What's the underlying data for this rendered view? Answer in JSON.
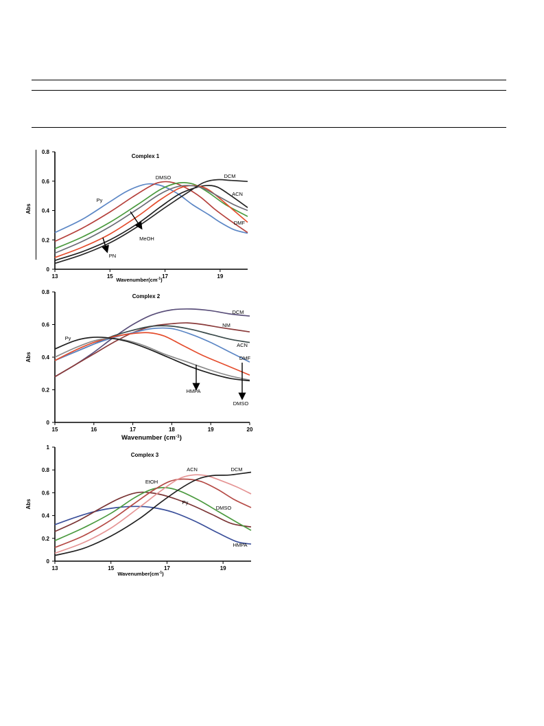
{
  "chart_data": [
    {
      "type": "line",
      "title": "Complex 1",
      "xlabel": "Wavenumber(cm-1)",
      "ylabel": "Abs",
      "xlim": [
        13,
        20
      ],
      "ylim": [
        0,
        0.8
      ],
      "xticks": [
        13,
        15,
        17,
        19
      ],
      "yticks": [
        0,
        0.2,
        0.4,
        0.6,
        0.8
      ],
      "series": [
        {
          "name": "Py",
          "color": "#5b86c5",
          "points": [
            [
              13,
              0.25
            ],
            [
              14,
              0.34
            ],
            [
              15,
              0.46
            ],
            [
              15.6,
              0.53
            ],
            [
              16.2,
              0.575
            ],
            [
              16.6,
              0.58
            ],
            [
              17,
              0.56
            ],
            [
              17.5,
              0.51
            ],
            [
              18,
              0.44
            ],
            [
              18.6,
              0.37
            ],
            [
              19,
              0.32
            ],
            [
              19.5,
              0.27
            ],
            [
              20,
              0.245
            ]
          ]
        },
        {
          "name": "DMSO",
          "color": "#b5403b",
          "points": [
            [
              13,
              0.19
            ],
            [
              14,
              0.28
            ],
            [
              15,
              0.39
            ],
            [
              15.8,
              0.49
            ],
            [
              16.5,
              0.57
            ],
            [
              16.9,
              0.595
            ],
            [
              17.3,
              0.59
            ],
            [
              17.8,
              0.55
            ],
            [
              18.3,
              0.49
            ],
            [
              18.8,
              0.41
            ],
            [
              19.3,
              0.34
            ],
            [
              20,
              0.25
            ]
          ]
        },
        {
          "name": "MeOH",
          "color": "#4b9a3f",
          "points": [
            [
              13,
              0.14
            ],
            [
              14,
              0.22
            ],
            [
              15,
              0.32
            ],
            [
              16,
              0.44
            ],
            [
              16.8,
              0.54
            ],
            [
              17.3,
              0.58
            ],
            [
              17.7,
              0.59
            ],
            [
              18.1,
              0.575
            ],
            [
              18.6,
              0.52
            ],
            [
              19.2,
              0.44
            ],
            [
              20,
              0.36
            ]
          ]
        },
        {
          "name": "PN",
          "color": "#222222",
          "points": [
            [
              13,
              0.06
            ],
            [
              14,
              0.12
            ],
            [
              15,
              0.2
            ],
            [
              16,
              0.31
            ],
            [
              16.8,
              0.42
            ],
            [
              17.5,
              0.51
            ],
            [
              18.1,
              0.555
            ],
            [
              18.5,
              0.57
            ],
            [
              18.9,
              0.56
            ],
            [
              19.4,
              0.5
            ],
            [
              20,
              0.42
            ]
          ]
        },
        {
          "name": "DMF",
          "color": "#e44c2c",
          "points": [
            [
              13,
              0.08
            ],
            [
              14,
              0.15
            ],
            [
              15,
              0.24
            ],
            [
              16,
              0.36
            ],
            [
              16.8,
              0.47
            ],
            [
              17.5,
              0.55
            ],
            [
              18,
              0.57
            ],
            [
              18.5,
              0.55
            ],
            [
              19,
              0.48
            ],
            [
              19.5,
              0.4
            ],
            [
              20,
              0.32
            ]
          ]
        },
        {
          "name": "ACN",
          "color": "#6b6b75",
          "points": [
            [
              13,
              0.11
            ],
            [
              14,
              0.19
            ],
            [
              15,
              0.29
            ],
            [
              16,
              0.41
            ],
            [
              16.8,
              0.51
            ],
            [
              17.4,
              0.56
            ],
            [
              17.9,
              0.57
            ],
            [
              18.4,
              0.55
            ],
            [
              19,
              0.49
            ],
            [
              19.5,
              0.44
            ],
            [
              20,
              0.4
            ]
          ]
        },
        {
          "name": "DCM",
          "color": "#2a2a2a",
          "points": [
            [
              13,
              0.04
            ],
            [
              14,
              0.1
            ],
            [
              15,
              0.18
            ],
            [
              16,
              0.29
            ],
            [
              17,
              0.42
            ],
            [
              17.8,
              0.52
            ],
            [
              18.4,
              0.59
            ],
            [
              18.9,
              0.61
            ],
            [
              19.4,
              0.605
            ],
            [
              20,
              0.598
            ]
          ]
        }
      ],
      "annotations": [
        "DMSO",
        "DCM",
        "Py",
        "ACN",
        "MeOH",
        "DMF",
        "PN"
      ]
    },
    {
      "type": "line",
      "title": "Complex 2",
      "xlabel": "Wavenumber (cm-1)",
      "ylabel": "Abs",
      "xlim": [
        15,
        20
      ],
      "ylim": [
        0,
        0.8
      ],
      "xticks": [
        15,
        16,
        17,
        18,
        19,
        20
      ],
      "yticks": [
        0,
        0.2,
        0.4,
        0.6,
        0.8
      ],
      "series": [
        {
          "name": "DCM",
          "color": "#5a4f7a",
          "points": [
            [
              15,
              0.28
            ],
            [
              15.5,
              0.35
            ],
            [
              16,
              0.43
            ],
            [
              16.5,
              0.52
            ],
            [
              17,
              0.6
            ],
            [
              17.5,
              0.66
            ],
            [
              18,
              0.69
            ],
            [
              18.5,
              0.695
            ],
            [
              19,
              0.685
            ],
            [
              19.5,
              0.665
            ],
            [
              20,
              0.652
            ]
          ]
        },
        {
          "name": "NM",
          "color": "#8a3a3a",
          "points": [
            [
              15,
              0.28
            ],
            [
              15.5,
              0.35
            ],
            [
              16,
              0.42
            ],
            [
              16.5,
              0.49
            ],
            [
              17,
              0.55
            ],
            [
              17.5,
              0.59
            ],
            [
              18,
              0.605
            ],
            [
              18.4,
              0.61
            ],
            [
              18.8,
              0.6
            ],
            [
              19.3,
              0.58
            ],
            [
              20,
              0.555
            ]
          ]
        },
        {
          "name": "ACN",
          "color": "#3a4a4a",
          "points": [
            [
              15,
              0.38
            ],
            [
              15.5,
              0.43
            ],
            [
              16,
              0.48
            ],
            [
              16.5,
              0.53
            ],
            [
              17,
              0.565
            ],
            [
              17.5,
              0.59
            ],
            [
              18,
              0.59
            ],
            [
              18.5,
              0.57
            ],
            [
              19,
              0.54
            ],
            [
              19.5,
              0.51
            ],
            [
              20,
              0.49
            ]
          ]
        },
        {
          "name": "DMF",
          "color": "#5b86c5",
          "points": [
            [
              15,
              0.38
            ],
            [
              15.5,
              0.43
            ],
            [
              16,
              0.48
            ],
            [
              16.5,
              0.52
            ],
            [
              17,
              0.55
            ],
            [
              17.5,
              0.575
            ],
            [
              18,
              0.575
            ],
            [
              18.5,
              0.54
            ],
            [
              19,
              0.49
            ],
            [
              19.5,
              0.43
            ],
            [
              20,
              0.37
            ]
          ]
        },
        {
          "name": "Py",
          "color": "#e44c2c",
          "points": [
            [
              15,
              0.38
            ],
            [
              15.5,
              0.44
            ],
            [
              16,
              0.49
            ],
            [
              16.5,
              0.525
            ],
            [
              17,
              0.545
            ],
            [
              17.4,
              0.55
            ],
            [
              17.8,
              0.53
            ],
            [
              18.3,
              0.47
            ],
            [
              18.8,
              0.41
            ],
            [
              19.4,
              0.35
            ],
            [
              20,
              0.29
            ]
          ]
        },
        {
          "name": "HMPA",
          "color": "#8a8a8a",
          "points": [
            [
              15,
              0.4
            ],
            [
              15.5,
              0.455
            ],
            [
              16,
              0.5
            ],
            [
              16.4,
              0.515
            ],
            [
              16.8,
              0.505
            ],
            [
              17.3,
              0.47
            ],
            [
              17.8,
              0.42
            ],
            [
              18.4,
              0.37
            ],
            [
              19,
              0.32
            ],
            [
              19.5,
              0.285
            ],
            [
              20,
              0.26
            ]
          ]
        },
        {
          "name": "DMSO",
          "color": "#1f1f1f",
          "points": [
            [
              15,
              0.45
            ],
            [
              15.5,
              0.5
            ],
            [
              15.9,
              0.52
            ],
            [
              16.3,
              0.52
            ],
            [
              16.8,
              0.5
            ],
            [
              17.3,
              0.46
            ],
            [
              17.9,
              0.4
            ],
            [
              18.5,
              0.34
            ],
            [
              19,
              0.3
            ],
            [
              19.5,
              0.27
            ],
            [
              20,
              0.255
            ]
          ]
        }
      ],
      "annotations": [
        "DCM",
        "NM",
        "Py",
        "ACN",
        "DMF",
        "HMPA",
        "DMSO"
      ]
    },
    {
      "type": "line",
      "title": "Complex 3",
      "xlabel": "Wavenumber(cm-1)",
      "ylabel": "Abs",
      "xlim": [
        13,
        20
      ],
      "ylim": [
        0,
        1
      ],
      "xticks": [
        13,
        15,
        17,
        19
      ],
      "yticks": [
        0,
        0.2,
        0.4,
        0.6,
        0.8,
        1
      ],
      "series": [
        {
          "name": "HMPA",
          "color": "#3a4f9a",
          "points": [
            [
              13,
              0.32
            ],
            [
              13.8,
              0.39
            ],
            [
              14.5,
              0.44
            ],
            [
              15.2,
              0.47
            ],
            [
              15.9,
              0.48
            ],
            [
              16.5,
              0.47
            ],
            [
              17.2,
              0.43
            ],
            [
              18,
              0.35
            ],
            [
              18.8,
              0.25
            ],
            [
              19.5,
              0.17
            ],
            [
              20,
              0.15
            ]
          ]
        },
        {
          "name": "Py",
          "color": "#7a3434",
          "points": [
            [
              13,
              0.26
            ],
            [
              13.8,
              0.35
            ],
            [
              14.6,
              0.46
            ],
            [
              15.3,
              0.55
            ],
            [
              15.9,
              0.6
            ],
            [
              16.4,
              0.6
            ],
            [
              17,
              0.57
            ],
            [
              17.8,
              0.5
            ],
            [
              18.6,
              0.41
            ],
            [
              19.3,
              0.33
            ],
            [
              20,
              0.3
            ]
          ]
        },
        {
          "name": "DMSO",
          "color": "#4b9a3f",
          "points": [
            [
              13,
              0.18
            ],
            [
              14,
              0.29
            ],
            [
              15,
              0.42
            ],
            [
              15.8,
              0.55
            ],
            [
              16.4,
              0.625
            ],
            [
              16.9,
              0.645
            ],
            [
              17.4,
              0.62
            ],
            [
              18.1,
              0.54
            ],
            [
              18.8,
              0.44
            ],
            [
              19.5,
              0.34
            ],
            [
              20,
              0.27
            ]
          ]
        },
        {
          "name": "EtOH",
          "color": "#b54a45",
          "points": [
            [
              13,
              0.12
            ],
            [
              14,
              0.22
            ],
            [
              15,
              0.36
            ],
            [
              15.8,
              0.5
            ],
            [
              16.5,
              0.62
            ],
            [
              17.1,
              0.7
            ],
            [
              17.6,
              0.72
            ],
            [
              18.2,
              0.7
            ],
            [
              18.8,
              0.63
            ],
            [
              19.4,
              0.54
            ],
            [
              20,
              0.47
            ]
          ]
        },
        {
          "name": "ACN",
          "color": "#e59494",
          "points": [
            [
              13,
              0.07
            ],
            [
              14,
              0.16
            ],
            [
              15,
              0.29
            ],
            [
              16,
              0.47
            ],
            [
              16.8,
              0.62
            ],
            [
              17.4,
              0.72
            ],
            [
              17.9,
              0.755
            ],
            [
              18.4,
              0.75
            ],
            [
              19,
              0.7
            ],
            [
              19.5,
              0.65
            ],
            [
              20,
              0.59
            ]
          ]
        },
        {
          "name": "DCM",
          "color": "#222222",
          "points": [
            [
              13,
              0.05
            ],
            [
              14,
              0.11
            ],
            [
              15,
              0.22
            ],
            [
              16,
              0.37
            ],
            [
              16.8,
              0.52
            ],
            [
              17.5,
              0.64
            ],
            [
              18.1,
              0.72
            ],
            [
              18.6,
              0.75
            ],
            [
              19.2,
              0.755
            ],
            [
              19.7,
              0.77
            ],
            [
              20,
              0.78
            ]
          ]
        }
      ],
      "annotations": [
        "ACN",
        "DCM",
        "EtOH",
        "Py",
        "DMSO",
        "HMPA"
      ]
    }
  ]
}
